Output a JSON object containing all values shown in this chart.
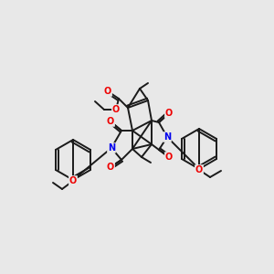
{
  "bg_color": "#e8e8e8",
  "bond_color": "#1a1a1a",
  "bond_width": 1.4,
  "atom_colors": {
    "N": "#0000ee",
    "O": "#ee0000",
    "C": "#1a1a1a"
  },
  "fig_size": [
    3.0,
    3.0
  ],
  "dpi": 100,
  "label_fontsize": 7.0
}
